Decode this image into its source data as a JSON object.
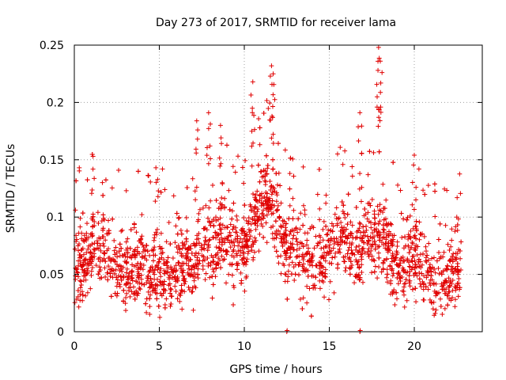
{
  "chart_data": {
    "type": "scatter",
    "title": "Day 273 of 2017, SRMTID for receiver lama",
    "xlabel": "GPS time / hours",
    "ylabel": "SRMTID / TECUs",
    "xlim": [
      0,
      24
    ],
    "ylim": [
      0,
      0.25
    ],
    "xticks": [
      0,
      5,
      10,
      15,
      20
    ],
    "xtick_labels": [
      "0",
      "5",
      "10",
      "15",
      "20"
    ],
    "yticks": [
      0,
      0.05,
      0.1,
      0.15,
      0.2,
      0.25
    ],
    "ytick_labels": [
      "0",
      "0.05",
      "0.1",
      "0.15",
      "0.2",
      "0.25"
    ],
    "grid": true,
    "marker": "+",
    "color": "#e00000",
    "series": [
      {
        "name": "SRMTID",
        "x_range_hours": [
          0,
          22.75
        ],
        "approx_point_count": 2500,
        "baseline_profile": [
          [
            0.0,
            0.06
          ],
          [
            0.5,
            0.055
          ],
          [
            1.0,
            0.07
          ],
          [
            1.5,
            0.08
          ],
          [
            2.0,
            0.07
          ],
          [
            2.5,
            0.055
          ],
          [
            3.0,
            0.05
          ],
          [
            3.5,
            0.06
          ],
          [
            4.0,
            0.065
          ],
          [
            4.5,
            0.04
          ],
          [
            5.0,
            0.055
          ],
          [
            5.5,
            0.05
          ],
          [
            6.0,
            0.055
          ],
          [
            6.5,
            0.065
          ],
          [
            7.0,
            0.06
          ],
          [
            7.5,
            0.07
          ],
          [
            8.0,
            0.075
          ],
          [
            8.5,
            0.085
          ],
          [
            9.0,
            0.08
          ],
          [
            9.5,
            0.075
          ],
          [
            10.0,
            0.07
          ],
          [
            10.5,
            0.09
          ],
          [
            11.0,
            0.11
          ],
          [
            11.5,
            0.12
          ],
          [
            12.0,
            0.095
          ],
          [
            12.5,
            0.07
          ],
          [
            13.0,
            0.08
          ],
          [
            13.5,
            0.06
          ],
          [
            14.0,
            0.065
          ],
          [
            14.5,
            0.06
          ],
          [
            15.0,
            0.075
          ],
          [
            15.5,
            0.085
          ],
          [
            16.0,
            0.075
          ],
          [
            16.5,
            0.07
          ],
          [
            17.0,
            0.08
          ],
          [
            17.5,
            0.085
          ],
          [
            18.0,
            0.085
          ],
          [
            18.5,
            0.07
          ],
          [
            19.0,
            0.05
          ],
          [
            19.5,
            0.06
          ],
          [
            20.0,
            0.07
          ],
          [
            20.5,
            0.055
          ],
          [
            21.0,
            0.045
          ],
          [
            21.5,
            0.045
          ],
          [
            22.0,
            0.045
          ],
          [
            22.5,
            0.055
          ]
        ],
        "spikes": [
          [
            1.1,
            0.153
          ],
          [
            4.8,
            0.143
          ],
          [
            7.2,
            0.184
          ],
          [
            7.9,
            0.191
          ],
          [
            8.6,
            0.18
          ],
          [
            10.5,
            0.218
          ],
          [
            11.6,
            0.232
          ],
          [
            11.7,
            0.225
          ],
          [
            16.8,
            0.191
          ],
          [
            17.9,
            0.248
          ],
          [
            18.0,
            0.236
          ],
          [
            20.0,
            0.154
          ],
          [
            22.5,
            0.1
          ]
        ],
        "outliers_at_zero": [
          12.5,
          16.8
        ]
      }
    ]
  }
}
